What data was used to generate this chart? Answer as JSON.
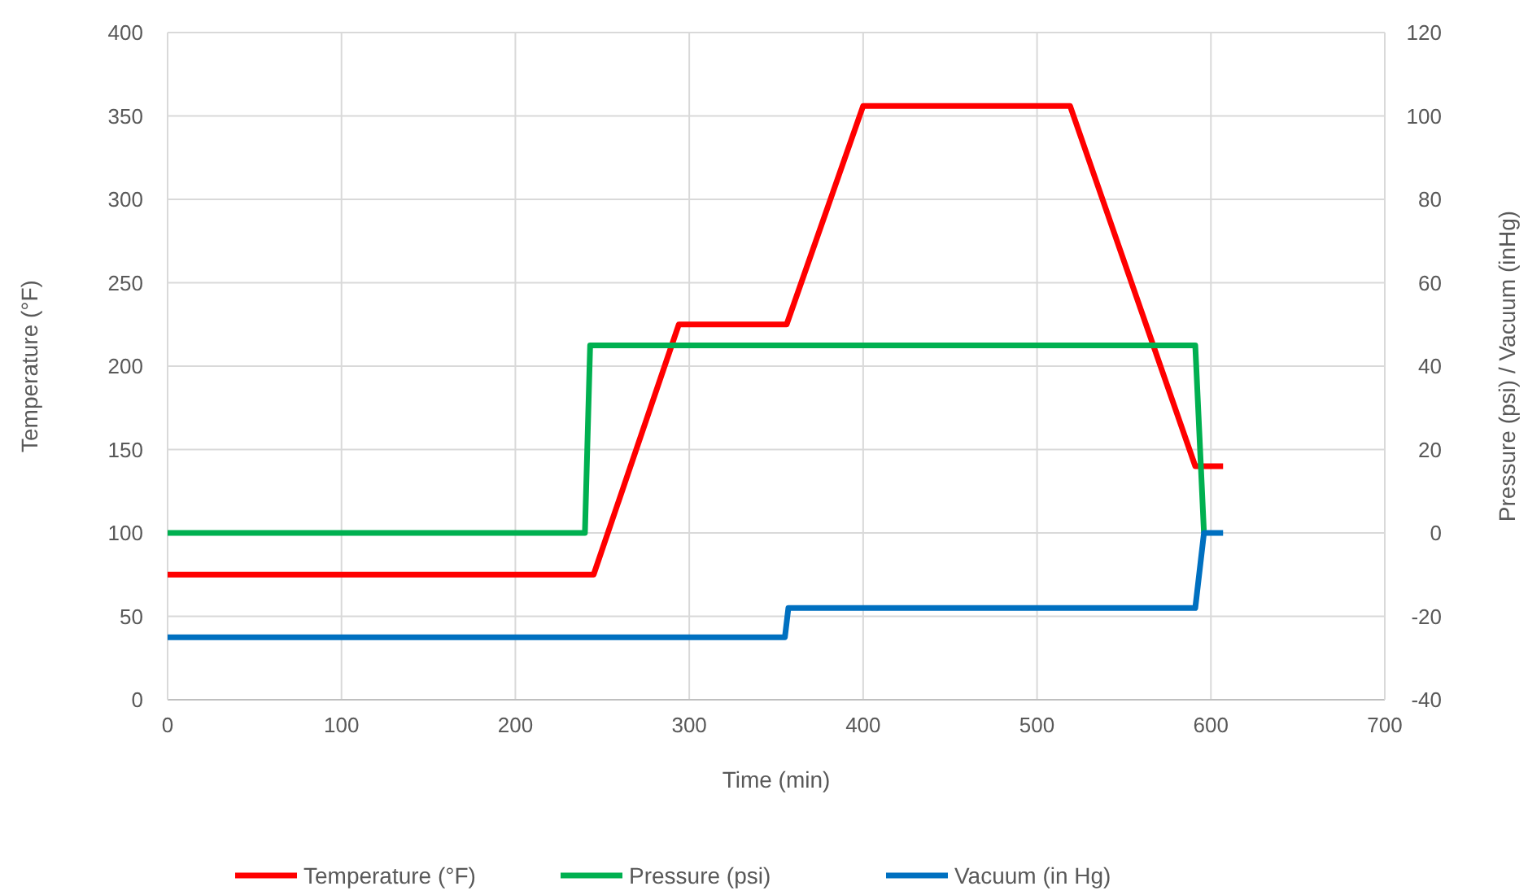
{
  "chart_data": {
    "type": "line",
    "xlabel": "Time (min)",
    "ylabel": "Temperature (°F)",
    "y2label": "Pressure (psi) / Vacuum (inHg)",
    "xlim": [
      0,
      700
    ],
    "xticks": [
      0,
      100,
      200,
      300,
      400,
      500,
      600,
      700
    ],
    "ylim": [
      0,
      400
    ],
    "yticks": [
      0,
      50,
      100,
      150,
      200,
      250,
      300,
      350,
      400
    ],
    "y2lim": [
      -40,
      120
    ],
    "y2ticks": [
      -40,
      -20,
      0,
      20,
      40,
      60,
      80,
      100,
      120
    ],
    "grid": true,
    "legend": "bottom",
    "marker": "none",
    "line_style": "solid",
    "series": [
      {
        "name": "Temperature (°F)",
        "color": "#ff0000",
        "x": [
          0,
          245,
          294,
          356,
          400,
          519,
          591,
          607
        ],
        "values": [
          75,
          75,
          225,
          225,
          356,
          356,
          140,
          140
        ]
      },
      {
        "name": "Pressure (psi)",
        "color": "#00b050",
        "axis": "y2",
        "x": [
          0,
          240,
          243,
          591,
          596
        ],
        "values": [
          0,
          0,
          45,
          45,
          0
        ]
      },
      {
        "name": "Vacuum (in Hg)",
        "color": "#0070c0",
        "axis": "y2",
        "x": [
          0,
          355,
          357,
          591,
          596,
          607
        ],
        "values": [
          -25,
          -25,
          -18,
          -18,
          0,
          0
        ]
      }
    ]
  }
}
